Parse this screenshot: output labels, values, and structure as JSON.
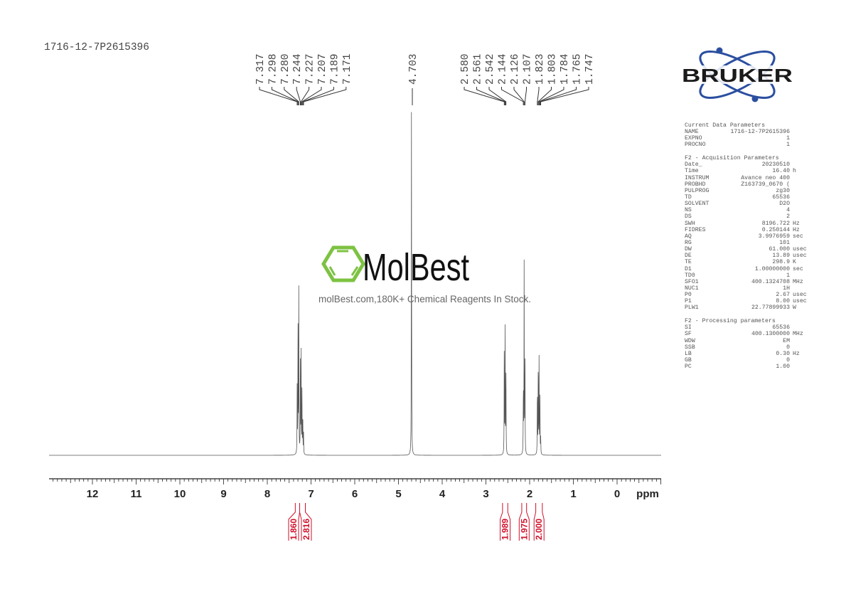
{
  "title": "1716-12-7P2615396",
  "logo": {
    "text": "BRUKER",
    "color": "#1a1a1a",
    "accent": "#2b4fa0"
  },
  "watermark": {
    "name": "MolBest",
    "tagline": "molBest.com,180K+ Chemical Reagents In Stock.",
    "color": "#7dc242"
  },
  "parameters": [
    {
      "heading": "Current Data Parameters",
      "rows": [
        [
          "NAME",
          "1716-12-7P2615396",
          ""
        ],
        [
          "EXPNO",
          "1",
          ""
        ],
        [
          "PROCNO",
          "1",
          ""
        ]
      ]
    },
    {
      "heading": "F2 - Acquisition Parameters",
      "rows": [
        [
          "Date_",
          "20230510",
          ""
        ],
        [
          "Time",
          "16.40",
          "h"
        ],
        [
          "INSTRUM",
          "Avance neo 400",
          ""
        ],
        [
          "PROBHD",
          "Z163739_0670 (",
          ""
        ],
        [
          "PULPROG",
          "zg30",
          ""
        ],
        [
          "TD",
          "65536",
          ""
        ],
        [
          "SOLVENT",
          "D2O",
          ""
        ],
        [
          "NS",
          "4",
          ""
        ],
        [
          "DS",
          "2",
          ""
        ],
        [
          "SWH",
          "8196.722",
          "Hz"
        ],
        [
          "FIDRES",
          "0.250144",
          "Hz"
        ],
        [
          "AQ",
          "3.9976959",
          "sec"
        ],
        [
          "RG",
          "101",
          ""
        ],
        [
          "DW",
          "61.000",
          "usec"
        ],
        [
          "DE",
          "13.89",
          "usec"
        ],
        [
          "TE",
          "298.9",
          "K"
        ],
        [
          "D1",
          "1.00000000",
          "sec"
        ],
        [
          "TD0",
          "1",
          ""
        ],
        [
          "SFO1",
          "400.1324708",
          "MHz"
        ],
        [
          "NUC1",
          "1H",
          ""
        ],
        [
          "P0",
          "2.67",
          "usec"
        ],
        [
          "P1",
          "8.00",
          "usec"
        ],
        [
          "PLW1",
          "22.77899933",
          "W"
        ]
      ]
    },
    {
      "heading": "F2 - Processing parameters",
      "rows": [
        [
          "SI",
          "65536",
          ""
        ],
        [
          "SF",
          "400.1300000",
          "MHz"
        ],
        [
          "WDW",
          "EM",
          ""
        ],
        [
          "SSB",
          "0",
          ""
        ],
        [
          "LB",
          "0.30",
          "Hz"
        ],
        [
          "GB",
          "0",
          ""
        ],
        [
          "PC",
          "1.00",
          ""
        ]
      ]
    }
  ],
  "chart_data": {
    "type": "line",
    "xlabel": "ppm",
    "xlim": [
      13,
      -1
    ],
    "xticks": [
      12,
      11,
      10,
      9,
      8,
      7,
      6,
      5,
      4,
      3,
      2,
      1,
      0
    ],
    "minor_tick_step": 0.1,
    "line_color": "#555555",
    "integral_color": "#d0102a",
    "peak_groups": [
      {
        "labels": [
          "7.317",
          "7.298",
          "7.280",
          "7.244",
          "7.227",
          "7.207",
          "7.189",
          "7.171"
        ]
      },
      {
        "labels": [
          "4.703"
        ]
      },
      {
        "labels": [
          "2.580",
          "2.561",
          "2.542",
          "2.144",
          "2.126",
          "2.107",
          "1.823",
          "1.803",
          "1.784",
          "1.765",
          "1.747"
        ]
      }
    ],
    "peaks": [
      {
        "ppm": 7.317,
        "intensity": 0.19
      },
      {
        "ppm": 7.298,
        "intensity": 0.4
      },
      {
        "ppm": 7.28,
        "intensity": 0.48
      },
      {
        "ppm": 7.244,
        "intensity": 0.26
      },
      {
        "ppm": 7.227,
        "intensity": 0.3
      },
      {
        "ppm": 7.207,
        "intensity": 0.18
      },
      {
        "ppm": 7.189,
        "intensity": 0.12
      },
      {
        "ppm": 7.171,
        "intensity": 0.06
      },
      {
        "ppm": 4.703,
        "intensity": 1.0
      },
      {
        "ppm": 2.58,
        "intensity": 0.33
      },
      {
        "ppm": 2.561,
        "intensity": 0.36
      },
      {
        "ppm": 2.542,
        "intensity": 0.26
      },
      {
        "ppm": 2.144,
        "intensity": 0.2
      },
      {
        "ppm": 2.126,
        "intensity": 0.55
      },
      {
        "ppm": 2.107,
        "intensity": 0.3
      },
      {
        "ppm": 1.823,
        "intensity": 0.2
      },
      {
        "ppm": 1.803,
        "intensity": 0.29
      },
      {
        "ppm": 1.784,
        "intensity": 0.28
      },
      {
        "ppm": 1.765,
        "intensity": 0.17
      },
      {
        "ppm": 1.747,
        "intensity": 0.05
      }
    ],
    "integrals": [
      {
        "value": "1.860",
        "from": 7.36,
        "to": 7.26
      },
      {
        "value": "2.816",
        "from": 7.26,
        "to": 7.13
      },
      {
        "value": "1.989",
        "from": 2.62,
        "to": 2.5
      },
      {
        "value": "1.975",
        "from": 2.18,
        "to": 2.07
      },
      {
        "value": "2.000",
        "from": 1.86,
        "to": 1.71
      }
    ]
  }
}
